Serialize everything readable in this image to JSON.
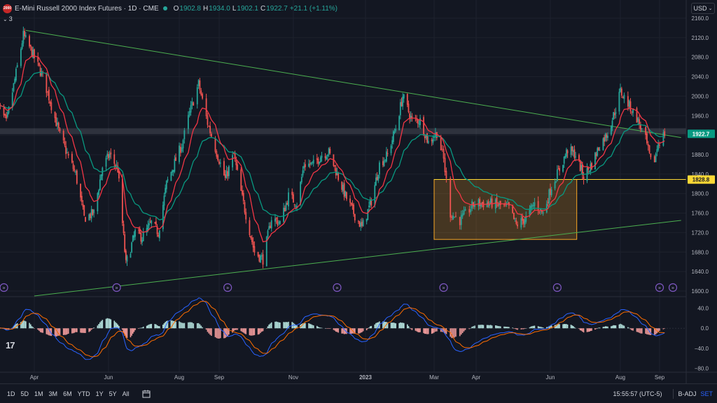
{
  "legend": {
    "symbol_icon_text": "2000",
    "title": "E-Mini Russell 2000 Index Futures · 1D · CME",
    "open_label": "O",
    "open": "1902.8",
    "high_label": "H",
    "high": "1934.0",
    "low_label": "L",
    "low": "1902.1",
    "close_label": "C",
    "close": "1922.7",
    "change": "+21.1 (+1.11%)",
    "indicator_count": "3"
  },
  "currency": "USD",
  "tv_logo": "17",
  "bottom_toolbar": {
    "ranges": [
      "1D",
      "5D",
      "1M",
      "3M",
      "6M",
      "YTD",
      "1Y",
      "5Y",
      "All"
    ],
    "clock": "15:55:57 (UTC-5)",
    "adjustment": "B-ADJ",
    "settings": "SET"
  },
  "colors": {
    "up": "#26a69a",
    "down": "#ef5350",
    "ema_fast": "#f23645",
    "ema_slow": "#089981",
    "trendline": "#4caf50",
    "box": "#f9a825",
    "price_badge": "#089981",
    "box_badge": "#fdd835"
  },
  "chart_data": [
    {
      "type": "candlestick",
      "y_ticks": [
        "2160.0",
        "2120.0",
        "2080.0",
        "2040.0",
        "2000.0",
        "1960.0",
        "1920.0",
        "1880.0",
        "1840.0",
        "1800.0",
        "1760.0",
        "1720.0",
        "1680.0",
        "1640.0",
        "1600.0"
      ],
      "ylim": [
        1600,
        2165
      ],
      "x_ticks": [
        "Apr",
        "Jun",
        "Aug",
        "Sep",
        "Nov",
        "2023",
        "Mar",
        "Apr",
        "Jun",
        "Aug",
        "Sep"
      ],
      "last_price_label": "1922.7",
      "box_level_label": "1828.8",
      "path_points": [
        [
          "2022-03-01",
          1990
        ],
        [
          "2022-03-09",
          1945
        ],
        [
          "2022-03-18",
          2060
        ],
        [
          "2022-03-23",
          2125
        ],
        [
          "2022-03-30",
          2090
        ],
        [
          "2022-04-08",
          2040
        ],
        [
          "2022-04-14",
          1990
        ],
        [
          "2022-04-22",
          1920
        ],
        [
          "2022-04-29",
          1875
        ],
        [
          "2022-05-05",
          1840
        ],
        [
          "2022-05-12",
          1750
        ],
        [
          "2022-05-20",
          1760
        ],
        [
          "2022-05-27",
          1855
        ],
        [
          "2022-06-02",
          1880
        ],
        [
          "2022-06-09",
          1850
        ],
        [
          "2022-06-16",
          1655
        ],
        [
          "2022-06-24",
          1720
        ],
        [
          "2022-06-30",
          1710
        ],
        [
          "2022-07-08",
          1740
        ],
        [
          "2022-07-14",
          1720
        ],
        [
          "2022-07-21",
          1820
        ],
        [
          "2022-08-03",
          1900
        ],
        [
          "2022-08-09",
          1965
        ],
        [
          "2022-08-16",
          2025
        ],
        [
          "2022-08-23",
          1945
        ],
        [
          "2022-08-30",
          1885
        ],
        [
          "2022-09-06",
          1830
        ],
        [
          "2022-09-13",
          1880
        ],
        [
          "2022-09-20",
          1790
        ],
        [
          "2022-09-30",
          1680
        ],
        [
          "2022-10-07",
          1665
        ],
        [
          "2022-10-14",
          1750
        ],
        [
          "2022-10-21",
          1740
        ],
        [
          "2022-10-28",
          1795
        ],
        [
          "2022-11-04",
          1780
        ],
        [
          "2022-11-10",
          1860
        ],
        [
          "2022-11-18",
          1860
        ],
        [
          "2022-11-25",
          1880
        ],
        [
          "2022-12-01",
          1885
        ],
        [
          "2022-12-08",
          1840
        ],
        [
          "2022-12-15",
          1795
        ],
        [
          "2022-12-22",
          1760
        ],
        [
          "2022-12-29",
          1730
        ],
        [
          "2023-01-06",
          1785
        ],
        [
          "2023-01-13",
          1860
        ],
        [
          "2023-01-20",
          1880
        ],
        [
          "2023-01-27",
          1935
        ],
        [
          "2023-02-02",
          2000
        ],
        [
          "2023-02-10",
          1950
        ],
        [
          "2023-02-17",
          1950
        ],
        [
          "2023-02-24",
          1905
        ],
        [
          "2023-03-03",
          1925
        ],
        [
          "2023-03-08",
          1870
        ],
        [
          "2023-03-13",
          1760
        ],
        [
          "2023-03-20",
          1745
        ],
        [
          "2023-03-31",
          1780
        ],
        [
          "2023-04-14",
          1780
        ],
        [
          "2023-04-28",
          1770
        ],
        [
          "2023-05-04",
          1735
        ],
        [
          "2023-05-12",
          1750
        ],
        [
          "2023-05-19",
          1780
        ],
        [
          "2023-05-26",
          1760
        ],
        [
          "2023-06-02",
          1815
        ],
        [
          "2023-06-09",
          1850
        ],
        [
          "2023-06-16",
          1890
        ],
        [
          "2023-06-23",
          1880
        ],
        [
          "2023-06-30",
          1835
        ],
        [
          "2023-07-07",
          1860
        ],
        [
          "2023-07-14",
          1900
        ],
        [
          "2023-07-21",
          1925
        ],
        [
          "2023-07-28",
          1975
        ],
        [
          "2023-08-01",
          2010
        ],
        [
          "2023-08-07",
          1985
        ],
        [
          "2023-08-14",
          1955
        ],
        [
          "2023-08-21",
          1910
        ],
        [
          "2023-08-25",
          1865
        ],
        [
          "2023-08-28",
          1870
        ],
        [
          "2023-08-31",
          1905
        ],
        [
          "2023-09-05",
          1922.7
        ]
      ],
      "trendlines": [
        {
          "start": [
            "2022-03-25",
            2135
          ],
          "end": [
            "2023-09-18",
            1915
          ]
        },
        {
          "start": [
            "2022-04-01",
            1590
          ],
          "end": [
            "2023-09-18",
            1745
          ]
        }
      ],
      "range_box": {
        "x": [
          "2023-03-01",
          "2023-06-24"
        ],
        "y": [
          1706,
          1829
        ]
      },
      "resistance_band": [
        1922,
        1934
      ]
    },
    {
      "type": "histogram",
      "name": "MACD",
      "y_ticks": [
        "40.0",
        "0.0",
        "−40.0",
        "−80.0"
      ],
      "ylim": [
        -88,
        55
      ]
    }
  ]
}
